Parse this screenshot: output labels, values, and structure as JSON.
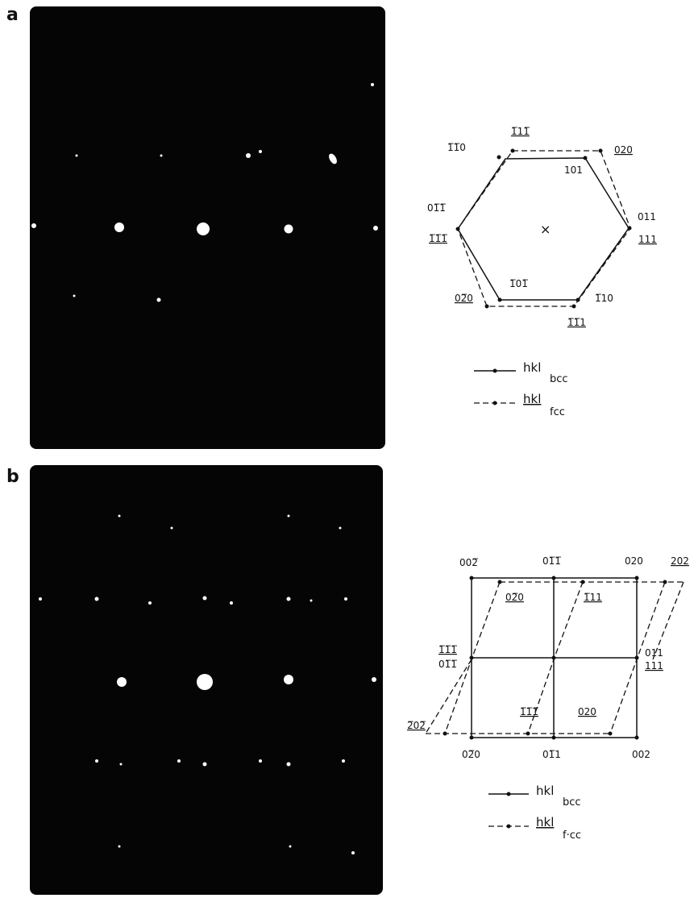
{
  "panels": [
    {
      "label": "a",
      "indices": [
        "1̅1̅0",
        "1̅11̅",
        "020",
        "101",
        "01̅1̅",
        "1̅1̅1̅",
        "011",
        "111",
        "1̅01̅",
        "1̅10",
        "02̅0",
        "1̅1̅1"
      ],
      "center_mark": "×",
      "legend": [
        {
          "text": "hkl",
          "sub": "bcc"
        },
        {
          "text": "hkl",
          "sub": "fcc"
        }
      ]
    },
    {
      "label": "b",
      "indices": [
        "002̅",
        "01̅1̅",
        "020",
        "202",
        "02̅0",
        "1̅11",
        "1̅1̅1̅",
        "01̅1̅",
        "011",
        "111",
        "2̅02̅",
        "1̅1̅1̅",
        "020",
        "02̅0",
        "01̅1",
        "002"
      ],
      "legend": [
        {
          "text": "hkl",
          "sub": "bcc"
        },
        {
          "text": "hkl",
          "sub": "f·cc"
        }
      ]
    }
  ]
}
